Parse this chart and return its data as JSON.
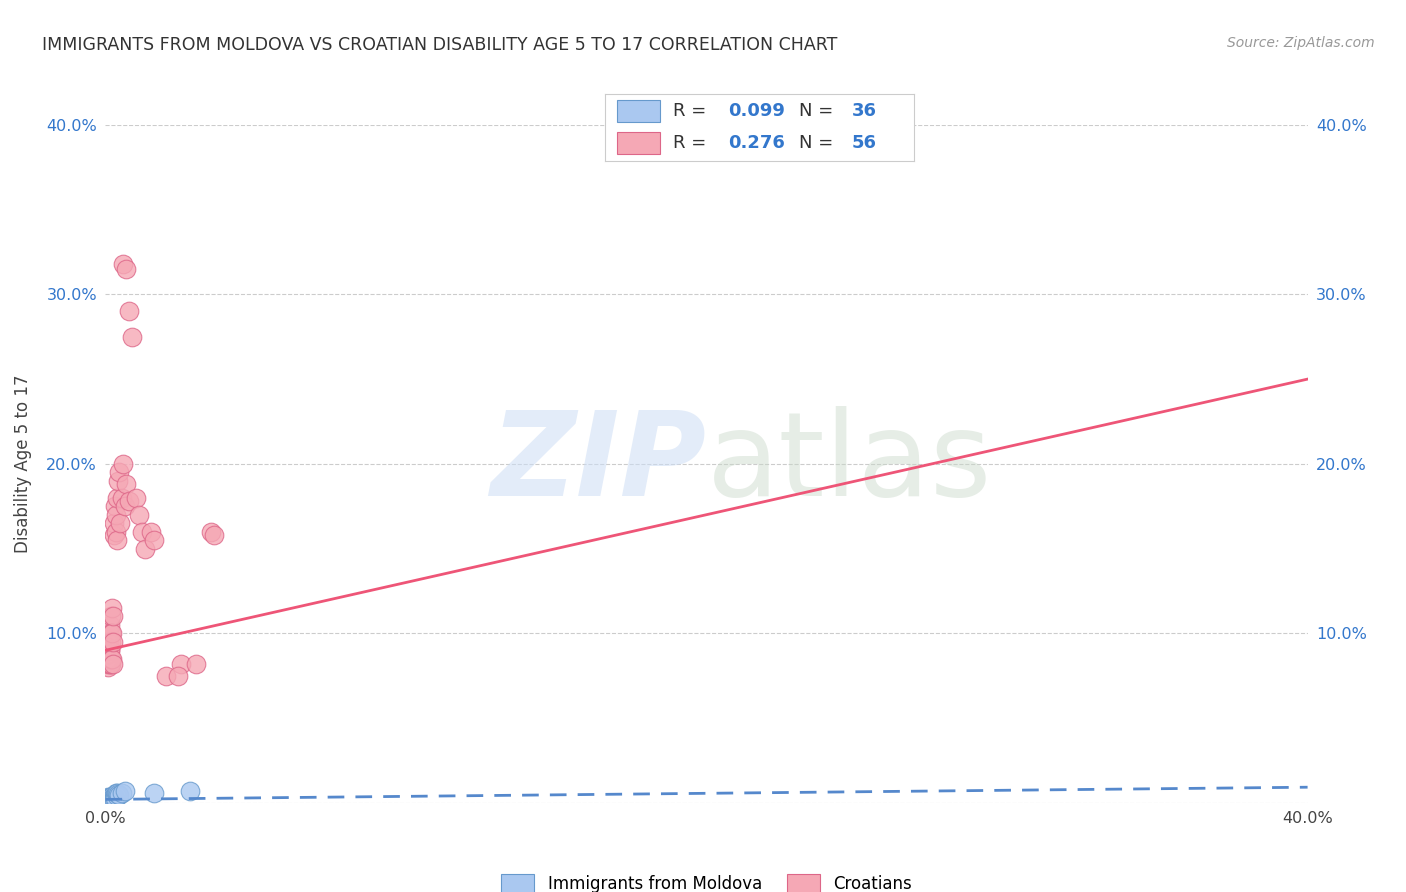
{
  "title": "IMMIGRANTS FROM MOLDOVA VS CROATIAN DISABILITY AGE 5 TO 17 CORRELATION CHART",
  "source": "Source: ZipAtlas.com",
  "ylabel": "Disability Age 5 to 17",
  "xlim": [
    0.0,
    0.4
  ],
  "ylim": [
    0.0,
    0.4
  ],
  "legend_r1": "0.099",
  "legend_n1": "36",
  "legend_r2": "0.276",
  "legend_n2": "56",
  "legend_label1": "Immigrants from Moldova",
  "legend_label2": "Croatians",
  "color_blue_fill": "#aac8f0",
  "color_pink_fill": "#f5a8b5",
  "color_blue_edge": "#6699cc",
  "color_pink_edge": "#dd6688",
  "color_blue_line": "#5588cc",
  "color_pink_line": "#ee5577",
  "color_label_blue": "#3377cc",
  "blue_x": [
    0.0005,
    0.0006,
    0.0007,
    0.0008,
    0.0009,
    0.001,
    0.001,
    0.001,
    0.0012,
    0.0013,
    0.0014,
    0.0015,
    0.0015,
    0.0016,
    0.0018,
    0.0018,
    0.0019,
    0.002,
    0.0021,
    0.0022,
    0.0022,
    0.0024,
    0.0025,
    0.0026,
    0.0028,
    0.003,
    0.0032,
    0.0035,
    0.0038,
    0.004,
    0.0042,
    0.0045,
    0.0055,
    0.0065,
    0.016,
    0.028
  ],
  "blue_y": [
    0.002,
    0.003,
    0.0025,
    0.0015,
    0.0035,
    0.0018,
    0.0025,
    0.001,
    0.0022,
    0.0028,
    0.002,
    0.003,
    0.0015,
    0.0025,
    0.0035,
    0.0018,
    0.0022,
    0.003,
    0.0025,
    0.0018,
    0.004,
    0.0025,
    0.0032,
    0.0015,
    0.0035,
    0.002,
    0.0028,
    0.0055,
    0.004,
    0.006,
    0.005,
    0.0045,
    0.006,
    0.007,
    0.0055,
    0.007
  ],
  "pink_x": [
    0.0005,
    0.0006,
    0.0007,
    0.0008,
    0.0009,
    0.001,
    0.001,
    0.0011,
    0.0012,
    0.0013,
    0.0014,
    0.0015,
    0.0015,
    0.0016,
    0.0017,
    0.0018,
    0.0019,
    0.002,
    0.002,
    0.0021,
    0.0022,
    0.0023,
    0.0024,
    0.0025,
    0.0026,
    0.0028,
    0.003,
    0.0032,
    0.0034,
    0.0036,
    0.0038,
    0.004,
    0.0042,
    0.0044,
    0.005,
    0.0055,
    0.006,
    0.0065,
    0.007,
    0.008,
    0.006,
    0.007,
    0.008,
    0.009,
    0.01,
    0.011,
    0.012,
    0.013,
    0.015,
    0.016,
    0.02,
    0.025,
    0.03,
    0.035,
    0.024,
    0.036
  ],
  "pink_y": [
    0.09,
    0.085,
    0.092,
    0.08,
    0.095,
    0.088,
    0.082,
    0.1,
    0.095,
    0.085,
    0.09,
    0.082,
    0.105,
    0.09,
    0.082,
    0.11,
    0.085,
    0.1,
    0.095,
    0.115,
    0.1,
    0.085,
    0.095,
    0.11,
    0.082,
    0.158,
    0.165,
    0.175,
    0.16,
    0.17,
    0.155,
    0.18,
    0.19,
    0.195,
    0.165,
    0.18,
    0.2,
    0.175,
    0.188,
    0.178,
    0.318,
    0.315,
    0.29,
    0.275,
    0.18,
    0.17,
    0.16,
    0.15,
    0.16,
    0.155,
    0.075,
    0.082,
    0.082,
    0.16,
    0.075,
    0.158
  ],
  "pink_intercept": 0.09,
  "pink_slope": 0.4,
  "blue_intercept": 0.002,
  "blue_slope": 0.018
}
